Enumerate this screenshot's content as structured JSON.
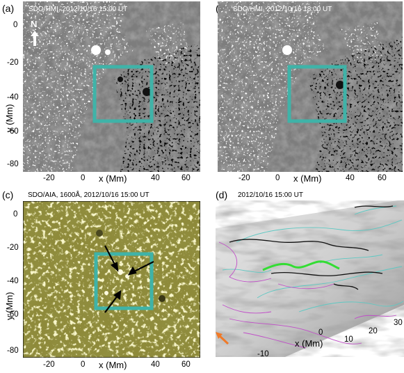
{
  "panels": {
    "a": {
      "label": "(a)",
      "title": "SDO/HMI, 2012/10/16 15:00 UT"
    },
    "b": {
      "label": "(b)",
      "title": "SDO/HMI, 2012/10/16 18:00 UT"
    },
    "c": {
      "label": "(c)",
      "title": "SDO/AIA, 1600Å, 2012/10/16 15:00 UT"
    },
    "d": {
      "label": "(d)",
      "title": "2012/10/16 15:00 UT"
    }
  },
  "north_label": "N",
  "axes": {
    "xlabel": "x (Mm)",
    "ylabel": "y (Mm)",
    "x_ticks": [
      "-20",
      "0",
      "20",
      "40",
      "60"
    ],
    "y_ticks": [
      "0",
      "-20",
      "-40",
      "-60",
      "-80"
    ],
    "d_x_ticks": [
      "-10",
      "0",
      "10",
      "20",
      "30"
    ]
  },
  "colors": {
    "box": "#3fb3a8",
    "arrow": "#000000",
    "green_line": "#33dd33",
    "orange_arrow": "#f07a28",
    "magenta": "#c04ec8",
    "cyan": "#5ec8c2",
    "hmi_gray": "#808080",
    "aia_olive": "#6e6a28"
  }
}
